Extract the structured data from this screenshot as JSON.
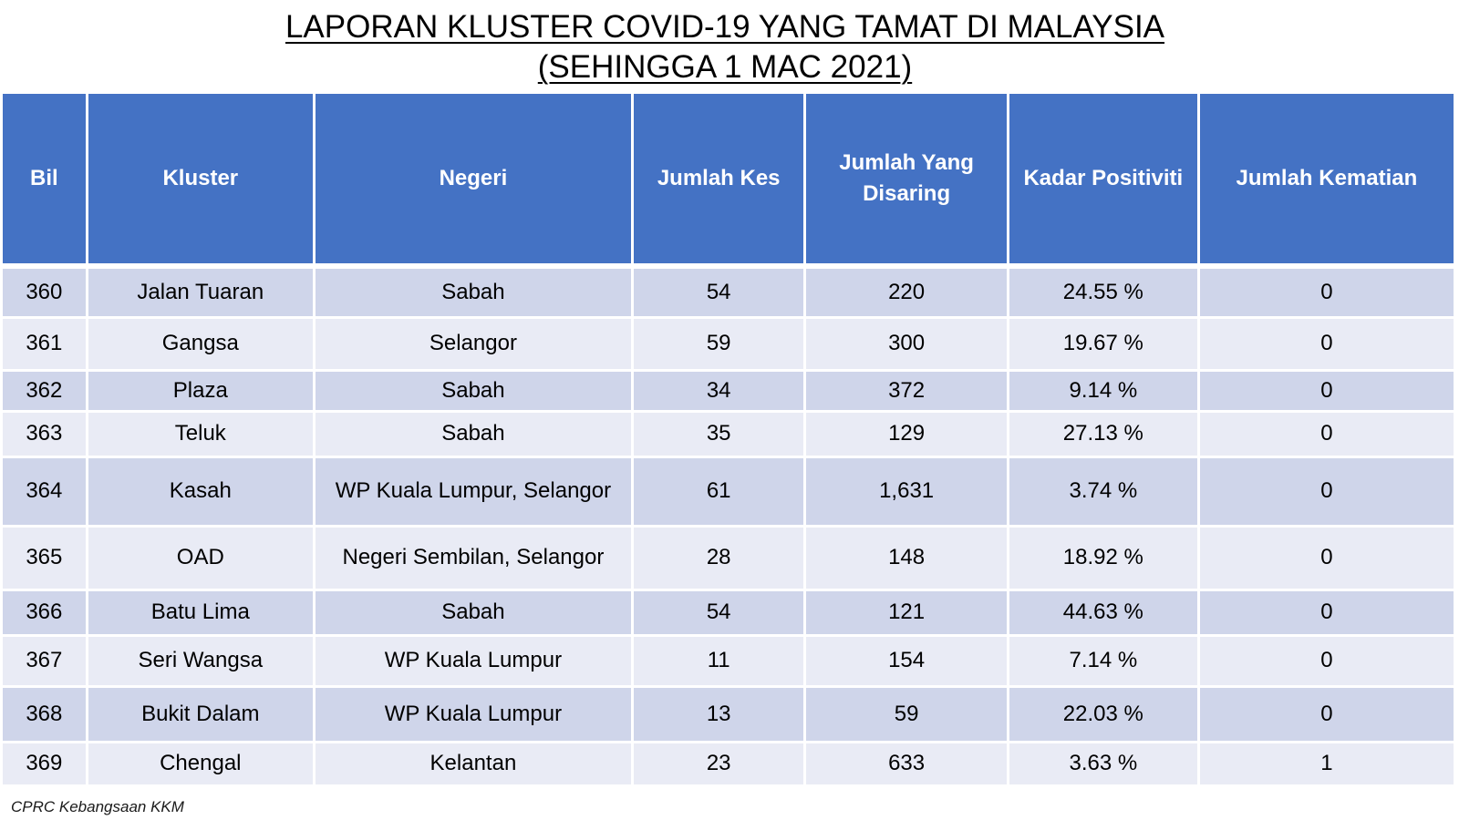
{
  "title": {
    "line1": "LAPORAN KLUSTER COVID-19 YANG TAMAT DI MALAYSIA",
    "line2": "(SEHINGGA 1 MAC 2021)"
  },
  "table": {
    "headers": [
      "Bil",
      "Kluster",
      "Negeri",
      "Jumlah Kes",
      "Jumlah Yang Disaring",
      "Kadar Positiviti",
      "Jumlah Kematian"
    ],
    "rows": [
      [
        "360",
        "Jalan Tuaran",
        "Sabah",
        "54",
        "220",
        "24.55 %",
        "0"
      ],
      [
        "361",
        "Gangsa",
        "Selangor",
        "59",
        "300",
        "19.67 %",
        "0"
      ],
      [
        "362",
        "Plaza",
        "Sabah",
        "34",
        "372",
        "9.14 %",
        "0"
      ],
      [
        "363",
        "Teluk",
        "Sabah",
        "35",
        "129",
        "27.13 %",
        "0"
      ],
      [
        "364",
        "Kasah",
        "WP Kuala Lumpur, Selangor",
        "61",
        "1,631",
        "3.74 %",
        "0"
      ],
      [
        "365",
        "OAD",
        "Negeri Sembilan, Selangor",
        "28",
        "148",
        "18.92 %",
        "0"
      ],
      [
        "366",
        "Batu Lima",
        "Sabah",
        "54",
        "121",
        "44.63 %",
        "0"
      ],
      [
        "367",
        "Seri Wangsa",
        "WP Kuala Lumpur",
        "11",
        "154",
        "7.14 %",
        "0"
      ],
      [
        "368",
        "Bukit Dalam",
        "WP Kuala Lumpur",
        "13",
        "59",
        "22.03 %",
        "0"
      ],
      [
        "369",
        "Chengal",
        "Kelantan",
        "23",
        "633",
        "3.63 %",
        "1"
      ]
    ]
  },
  "footnote": "CPRC Kebangsaan KKM",
  "colors": {
    "header_bg": "#4472c4",
    "row_dark": "#cfd5ea",
    "row_light": "#e9ebf5"
  }
}
